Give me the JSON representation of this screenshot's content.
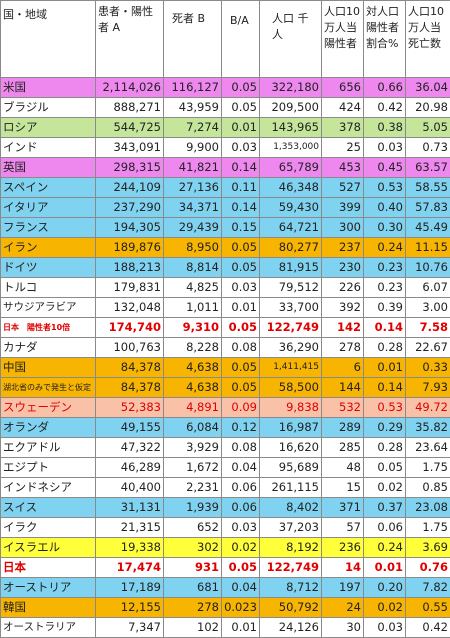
{
  "headers": [
    "国・地域",
    "患者・陽性者 A",
    "死者 B",
    "B/A",
    "人口 千人",
    "人口10万人当陽性者",
    "対人口陽性者割合%",
    "人口10万人当死亡数"
  ],
  "rows": [
    {
      "bg": "#ee88ee",
      "hl": false,
      "cells": [
        "米国",
        "2,114,026",
        "116,127",
        "0.05",
        "322,180",
        "656",
        "0.66",
        "36.04"
      ]
    },
    {
      "bg": "#ffffff",
      "hl": false,
      "cells": [
        "ブラジル",
        "888,271",
        "43,959",
        "0.05",
        "209,500",
        "424",
        "0.42",
        "20.98"
      ]
    },
    {
      "bg": "#c4e59a",
      "hl": false,
      "cells": [
        "ロシア",
        "544,725",
        "7,274",
        "0.01",
        "143,965",
        "378",
        "0.38",
        "5.05"
      ]
    },
    {
      "bg": "#ffffff",
      "hl": false,
      "cells": [
        "インド",
        "343,091",
        "9,900",
        "0.03",
        "1,353,000",
        "25",
        "0.03",
        "0.73"
      ]
    },
    {
      "bg": "#ee88ee",
      "hl": false,
      "cells": [
        "英国",
        "298,315",
        "41,821",
        "0.14",
        "65,789",
        "453",
        "0.45",
        "63.57"
      ]
    },
    {
      "bg": "#7fd3f1",
      "hl": false,
      "cells": [
        "スペイン",
        "244,109",
        "27,136",
        "0.11",
        "46,348",
        "527",
        "0.53",
        "58.55"
      ]
    },
    {
      "bg": "#7fd3f1",
      "hl": false,
      "cells": [
        "イタリア",
        "237,290",
        "34,371",
        "0.14",
        "59,430",
        "399",
        "0.40",
        "57.83"
      ]
    },
    {
      "bg": "#7fd3f1",
      "hl": false,
      "cells": [
        "フランス",
        "194,305",
        "29,439",
        "0.15",
        "64,721",
        "300",
        "0.30",
        "45.49"
      ]
    },
    {
      "bg": "#f7b400",
      "hl": false,
      "cells": [
        "イラン",
        "189,876",
        "8,950",
        "0.05",
        "80,277",
        "237",
        "0.24",
        "11.15"
      ]
    },
    {
      "bg": "#7fd3f1",
      "hl": false,
      "cells": [
        "ドイツ",
        "188,213",
        "8,814",
        "0.05",
        "81,915",
        "230",
        "0.23",
        "10.76"
      ]
    },
    {
      "bg": "#ffffff",
      "hl": false,
      "cells": [
        "トルコ",
        "179,831",
        "4,825",
        "0.03",
        "79,512",
        "226",
        "0.23",
        "6.07"
      ]
    },
    {
      "bg": "#ffffff",
      "hl": false,
      "cells": [
        "サウジアラビア",
        "132,048",
        "1,011",
        "0.01",
        "33,700",
        "392",
        "0.39",
        "3.00"
      ]
    },
    {
      "bg": "#ffffff",
      "hl": true,
      "cells": [
        "日本　陽性者10倍",
        "174,740",
        "9,310",
        "0.05",
        "122,749",
        "142",
        "0.14",
        "7.58"
      ]
    },
    {
      "bg": "#ffffff",
      "hl": false,
      "cells": [
        "カナダ",
        "100,763",
        "8,228",
        "0.08",
        "36,290",
        "278",
        "0.28",
        "22.67"
      ]
    },
    {
      "bg": "#f7b400",
      "hl": false,
      "cells": [
        "中国",
        "84,378",
        "4,638",
        "0.05",
        "1,411,415",
        "6",
        "0.01",
        "0.33"
      ]
    },
    {
      "bg": "#f7b400",
      "hl": false,
      "cells": [
        "湖北省のみで発生と仮定",
        "84,378",
        "4,638",
        "0.05",
        "58,500",
        "144",
        "0.14",
        "7.93"
      ]
    },
    {
      "bg": "#f8c1a8",
      "hl": false,
      "red": true,
      "cells": [
        "スウェーデン",
        "52,383",
        "4,891",
        "0.09",
        "9,838",
        "532",
        "0.53",
        "49.72"
      ]
    },
    {
      "bg": "#7fd3f1",
      "hl": false,
      "cells": [
        "オランダ",
        "49,155",
        "6,084",
        "0.12",
        "16,987",
        "289",
        "0.29",
        "35.82"
      ]
    },
    {
      "bg": "#ffffff",
      "hl": false,
      "cells": [
        "エクアドル",
        "47,322",
        "3,929",
        "0.08",
        "16,620",
        "285",
        "0.28",
        "23.64"
      ]
    },
    {
      "bg": "#ffffff",
      "hl": false,
      "cells": [
        "エジプト",
        "46,289",
        "1,672",
        "0.04",
        "95,689",
        "48",
        "0.05",
        "1.75"
      ]
    },
    {
      "bg": "#ffffff",
      "hl": false,
      "cells": [
        "インドネシア",
        "40,400",
        "2,231",
        "0.06",
        "261,115",
        "15",
        "0.02",
        "0.85"
      ]
    },
    {
      "bg": "#7fd3f1",
      "hl": false,
      "cells": [
        "スイス",
        "31,131",
        "1,939",
        "0.06",
        "8,402",
        "371",
        "0.37",
        "23.08"
      ]
    },
    {
      "bg": "#ffffff",
      "hl": false,
      "cells": [
        "イラク",
        "21,315",
        "652",
        "0.03",
        "37,203",
        "57",
        "0.06",
        "1.75"
      ]
    },
    {
      "bg": "#ffff3a",
      "hl": false,
      "cells": [
        "イスラエル",
        "19,338",
        "302",
        "0.02",
        "8,192",
        "236",
        "0.24",
        "3.69"
      ]
    },
    {
      "bg": "#ffffff",
      "hl": true,
      "cells": [
        "日本",
        "17,474",
        "931",
        "0.05",
        "122,749",
        "14",
        "0.01",
        "0.76"
      ]
    },
    {
      "bg": "#7fd3f1",
      "hl": false,
      "cells": [
        "オーストリア",
        "17,189",
        "681",
        "0.04",
        "8,712",
        "197",
        "0.20",
        "7.82"
      ]
    },
    {
      "bg": "#f7b400",
      "hl": false,
      "cells": [
        "韓国",
        "12,155",
        "278",
        "0.023",
        "50,792",
        "24",
        "0.02",
        "0.55"
      ]
    },
    {
      "bg": "#ffffff",
      "hl": false,
      "cells": [
        "オーストラリア",
        "7,347",
        "102",
        "0.01",
        "24,126",
        "30",
        "0.03",
        "0.42"
      ]
    }
  ]
}
